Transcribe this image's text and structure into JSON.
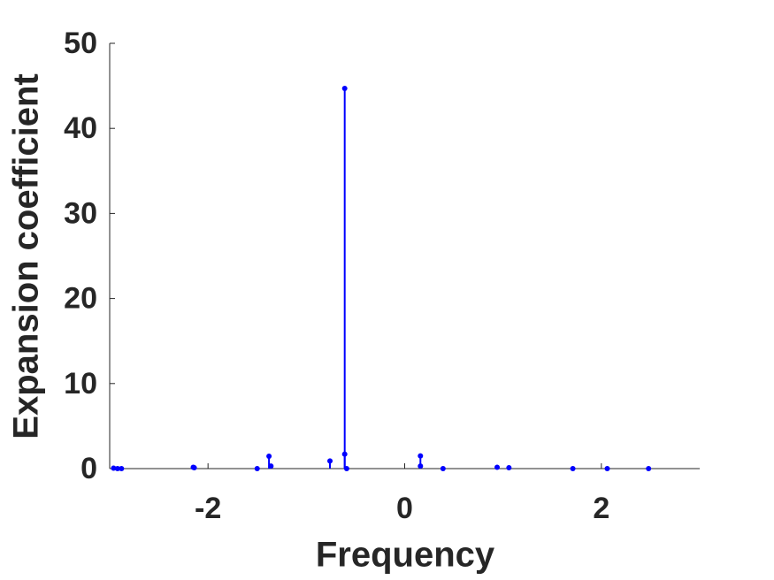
{
  "chart_data": {
    "type": "stem",
    "x_label": "Frequency",
    "y_label": "Expansion coefficient",
    "x": [
      -2.96,
      -2.92,
      -2.88,
      -2.15,
      -2.14,
      -1.5,
      -1.38,
      -1.36,
      -0.76,
      -0.61,
      -0.61,
      -0.59,
      0.16,
      0.16,
      0.39,
      0.94,
      1.06,
      1.71,
      2.06,
      2.48
    ],
    "values": [
      0.05,
      0,
      0,
      0.15,
      0.1,
      0,
      1.45,
      0.3,
      0.9,
      44.7,
      1.7,
      0,
      1.5,
      0.3,
      0,
      0.15,
      0.1,
      0,
      0,
      0
    ],
    "color": "#0000ff",
    "xlim": [
      -3,
      3
    ],
    "ylim": [
      0,
      50
    ],
    "xticks": [
      -2,
      0,
      2
    ],
    "yticks": [
      0,
      10,
      20,
      30,
      40,
      50
    ]
  }
}
